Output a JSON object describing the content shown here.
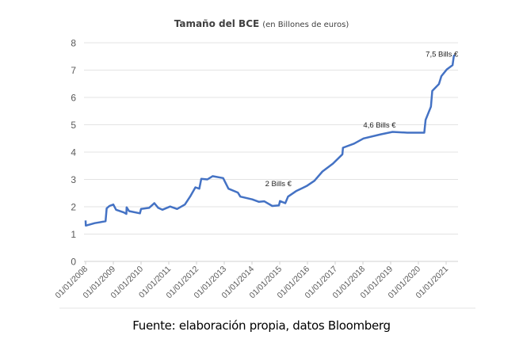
{
  "chart_data": {
    "type": "line",
    "title": "Tamaño del BCE",
    "subtitle": "(en Billones de euros)",
    "xlabel": "",
    "ylabel": "",
    "ylim": [
      0,
      8
    ],
    "xlim": [
      2008,
      2021.35
    ],
    "yticks": [
      "0",
      "1",
      "2",
      "3",
      "4",
      "5",
      "6",
      "7",
      "8"
    ],
    "xticks": [
      "01/01/2008",
      "01/01/2009",
      "01/01/2010",
      "01/01/2011",
      "01/01/2012",
      "01/01/2013",
      "01/01/2014",
      "01/01/2015",
      "01/01/2016",
      "01/01/2017",
      "01/01/2018",
      "01/01/2019",
      "01/01/2020",
      "01/01/2021"
    ],
    "grid": true,
    "color": "#4472c4",
    "series": [
      {
        "name": "Tamaño del BCE",
        "x": [
          2008.0,
          2008.01,
          2008.33,
          2008.72,
          2008.76,
          2008.86,
          2009.0,
          2009.1,
          2009.38,
          2009.47,
          2009.48,
          2009.57,
          2009.96,
          2010.0,
          2010.29,
          2010.48,
          2010.62,
          2010.77,
          2011.05,
          2011.3,
          2011.58,
          2011.77,
          2011.96,
          2012.1,
          2012.17,
          2012.39,
          2012.58,
          2012.96,
          2013.15,
          2013.49,
          2013.58,
          2014.01,
          2014.25,
          2014.44,
          2014.73,
          2014.97,
          2015.01,
          2015.2,
          2015.3,
          2015.59,
          2015.97,
          2016.25,
          2016.54,
          2016.92,
          2017.26,
          2017.28,
          2017.68,
          2018.02,
          2018.64,
          2019.07,
          2019.6,
          2020.21,
          2020.26,
          2020.45,
          2020.5,
          2020.74,
          2020.83,
          2021.02,
          2021.23,
          2021.28,
          2021.32
        ],
        "y": [
          1.5,
          1.31,
          1.4,
          1.47,
          1.94,
          2.03,
          2.08,
          1.89,
          1.79,
          1.74,
          1.98,
          1.84,
          1.76,
          1.92,
          1.96,
          2.13,
          1.96,
          1.89,
          2.01,
          1.92,
          2.08,
          2.37,
          2.71,
          2.66,
          3.02,
          3.0,
          3.12,
          3.05,
          2.66,
          2.52,
          2.37,
          2.27,
          2.18,
          2.2,
          2.03,
          2.05,
          2.21,
          2.13,
          2.37,
          2.57,
          2.76,
          2.95,
          3.29,
          3.58,
          3.92,
          4.16,
          4.31,
          4.5,
          4.65,
          4.74,
          4.71,
          4.71,
          5.18,
          5.66,
          6.24,
          6.49,
          6.78,
          7.02,
          7.18,
          7.53,
          7.53
        ]
      }
    ],
    "annotations": [
      {
        "text": "2 Bills €",
        "x": 2014.95,
        "y": 2.75
      },
      {
        "text": "4,6 Bills €",
        "x": 2018.6,
        "y": 4.9
      },
      {
        "text": "7,5 Bills €",
        "x": 2020.85,
        "y": 7.5
      }
    ]
  },
  "source": "Fuente: elaboración propia, datos Bloomberg"
}
